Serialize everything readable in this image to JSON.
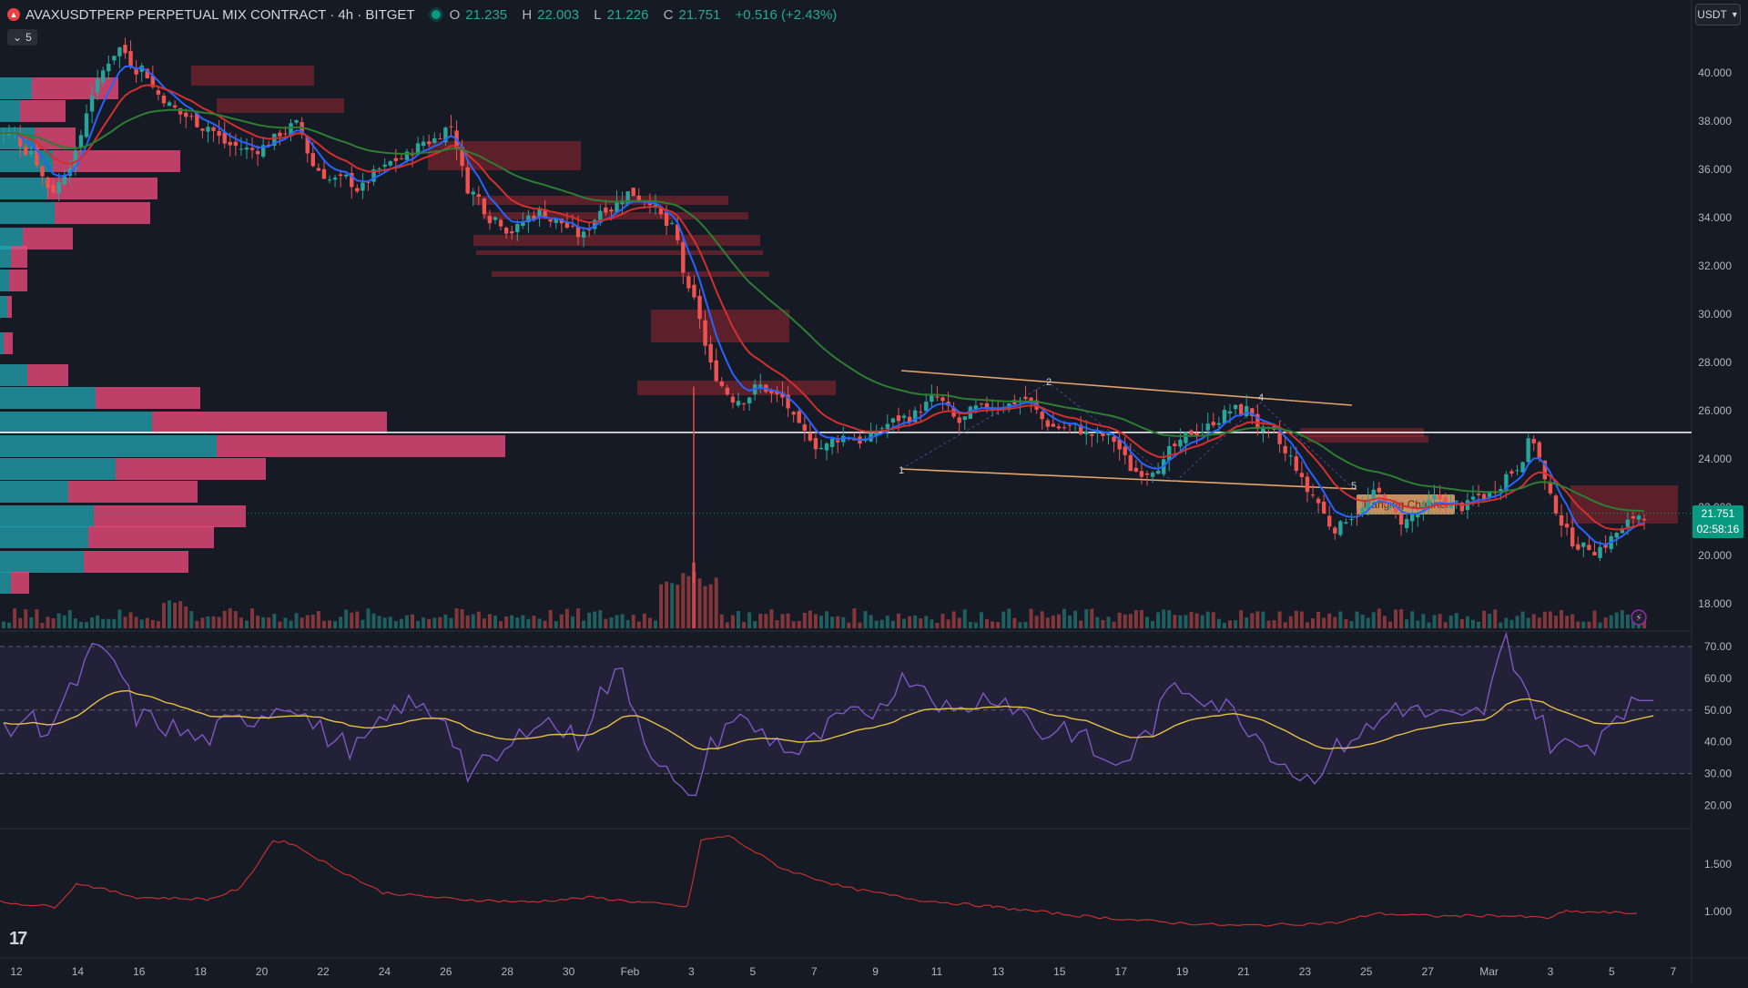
{
  "header": {
    "symbol_title": "AVAXUSDTPERP PERPETUAL MIX CONTRACT · 4h · BITGET",
    "ohlc": {
      "o_label": "O",
      "o": "21.235",
      "h_label": "H",
      "h": "22.003",
      "l_label": "L",
      "l": "21.226",
      "c_label": "C",
      "c": "21.751",
      "change": "+0.516 (+2.43%)"
    },
    "indicator_count": "5",
    "currency": "USDT",
    "symbol_icon": "avax-logo-icon",
    "collapse_icon": "chevron-down-icon"
  },
  "price_axis": {
    "main": [
      "40.000",
      "38.000",
      "36.000",
      "34.000",
      "32.000",
      "30.000",
      "28.000",
      "26.000",
      "24.000",
      "22.000",
      "20.000",
      "18.000"
    ],
    "rsi": [
      "70.00",
      "60.00",
      "50.00",
      "40.00",
      "30.00",
      "20.00"
    ],
    "third": [
      "1.500",
      "1.000"
    ]
  },
  "last_price": {
    "value": "21.751",
    "countdown": "02:58:16"
  },
  "time_axis": [
    "12",
    "14",
    "16",
    "18",
    "20",
    "22",
    "24",
    "26",
    "28",
    "30",
    "Feb",
    "3",
    "5",
    "7",
    "9",
    "11",
    "13",
    "15",
    "17",
    "19",
    "21",
    "23",
    "25",
    "27",
    "Mar",
    "3",
    "5",
    "7"
  ],
  "annotations": {
    "channel_label": "Ranging Channel",
    "wave_points": [
      "1",
      "2",
      "4",
      "5"
    ]
  },
  "chart_data": {
    "type": "candlestick",
    "timeframe": "4h",
    "approx_closes": [
      37.5,
      36.8,
      35.2,
      36.5,
      39.5,
      41.0,
      40.2,
      39.0,
      38.2,
      37.8,
      37.0,
      36.8,
      37.2,
      37.8,
      36.0,
      35.5,
      35.2,
      36.0,
      36.5,
      37.2,
      37.8,
      35.0,
      34.0,
      33.5,
      34.2,
      33.8,
      33.2,
      34.5,
      35.0,
      34.8,
      33.5,
      30.5,
      27.5,
      26.5,
      27.0,
      26.5,
      25.0,
      24.5,
      25.0,
      24.8,
      25.5,
      25.8,
      26.5,
      25.5,
      26.0,
      26.3,
      26.5,
      25.5,
      25.3,
      25.0,
      24.8,
      23.5,
      23.8,
      24.5,
      25.2,
      25.8,
      26.0,
      25.0,
      24.0,
      22.5,
      21.2,
      21.8,
      22.5,
      21.5,
      21.8,
      22.3,
      22.0,
      22.5,
      23.5,
      24.8,
      22.0,
      20.5,
      20.3,
      21.0,
      21.751
    ],
    "approx_rsi": [
      42,
      48,
      44,
      55,
      68,
      66,
      48,
      46,
      43,
      40,
      45,
      47,
      50,
      53,
      45,
      40,
      38,
      44,
      52,
      50,
      48,
      30,
      33,
      38,
      48,
      45,
      40,
      55,
      62,
      42,
      30,
      20,
      38,
      48,
      44,
      40,
      36,
      42,
      48,
      47,
      55,
      61,
      56,
      48,
      53,
      55,
      50,
      42,
      45,
      40,
      32,
      36,
      45,
      58,
      56,
      52,
      48,
      40,
      33,
      28,
      35,
      42,
      44,
      52,
      49,
      48,
      46,
      50,
      72,
      55,
      40,
      38,
      40,
      50,
      53
    ],
    "rsi_levels": [
      70,
      50,
      30
    ],
    "horizontal_line": 25.1,
    "ylim": [
      17.5,
      41.5
    ]
  }
}
